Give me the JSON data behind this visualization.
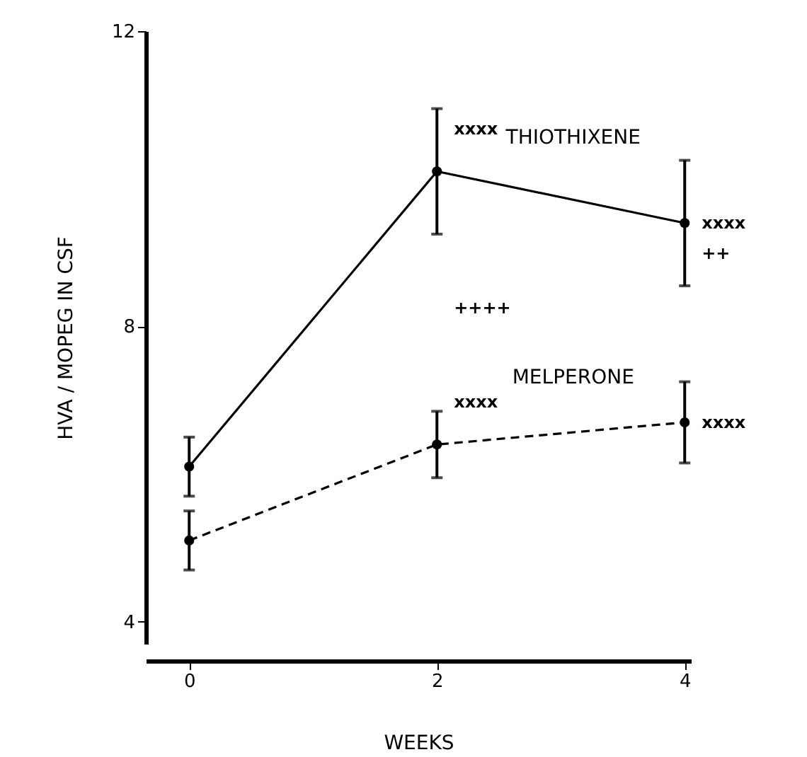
{
  "chart_data": {
    "type": "line",
    "xlabel": "WEEKS",
    "ylabel": "HVA / MOPEG  IN  CSF",
    "x": [
      0,
      2,
      4
    ],
    "series": [
      {
        "name": "THIOTHIXENE",
        "color": "#000000",
        "line_style": "solid",
        "values": [
          6.1,
          10.1,
          9.4
        ],
        "errors": [
          0.4,
          0.85,
          0.85
        ],
        "value_labels": [
          null,
          "xxxx",
          "xxxx"
        ]
      },
      {
        "name": "MELPERONE",
        "color": "#000000",
        "line_style": "dashed",
        "values": [
          5.1,
          6.4,
          6.7
        ],
        "errors": [
          0.4,
          0.45,
          0.55
        ],
        "value_labels": [
          null,
          "xxxx",
          "xxxx"
        ]
      }
    ],
    "annotations": [
      "++++",
      "++"
    ],
    "xlim": [
      -0.35,
      4.05
    ],
    "ylim": [
      3.7,
      12
    ],
    "xticks": [
      0,
      2,
      4
    ],
    "yticks": [
      4,
      8,
      12
    ],
    "grid": false,
    "marker": "circle"
  }
}
